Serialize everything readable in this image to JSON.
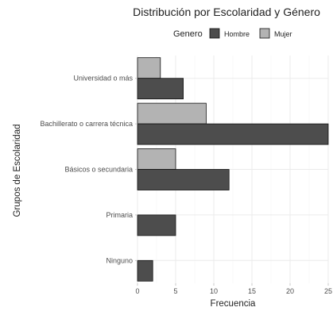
{
  "chart_data": {
    "type": "bar",
    "orientation": "horizontal",
    "title": "Distribución por Escolaridad y Género",
    "xlabel": "Frecuencia",
    "ylabel": "Grupos de Escolaridad",
    "categories": [
      "Universidad o más",
      "Bachillerato o carrera técnica",
      "Básicos o secundaria",
      "Primaria",
      "Ninguno"
    ],
    "series": [
      {
        "name": "Hombre",
        "values": [
          6,
          25,
          12,
          5,
          2
        ],
        "color": "#4d4d4d"
      },
      {
        "name": "Mujer",
        "values": [
          3,
          9,
          5,
          0,
          0
        ],
        "color": "#b3b3b3"
      }
    ],
    "legend": {
      "title": "Genero",
      "position": "top"
    },
    "xlim": [
      0,
      25
    ],
    "xticks": [
      "0",
      "5",
      "10",
      "15",
      "20",
      "25"
    ],
    "grid": true
  }
}
